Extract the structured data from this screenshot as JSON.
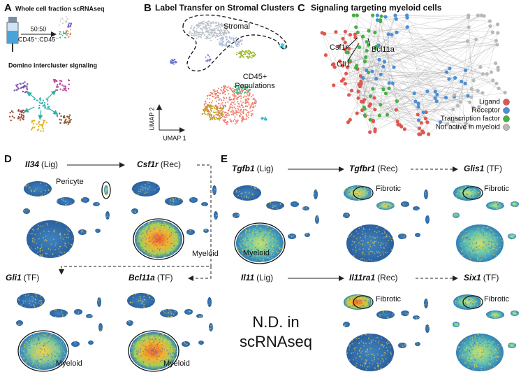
{
  "panel_a": {
    "label": "A",
    "title": "Whole cell fraction scRNAseq",
    "ratio": "50:50",
    "ratio_label": "CD45⁺:CD45⁻",
    "subtitle": "Domino intercluster signaling"
  },
  "panel_b": {
    "label": "B",
    "title": "Label Transfer on Stromal Clusters",
    "stromal": "Stromal",
    "populations": [
      "CD45+",
      "Populations"
    ],
    "umap_y": "UMAP 2",
    "umap_x": "UMAP 1"
  },
  "panel_c": {
    "label": "C",
    "title": "Signaling targeting myeloid cells",
    "genes": [
      "Csf1r",
      "Bcl11a",
      "Gli1"
    ],
    "legend": [
      {
        "name": "Ligand",
        "color": "#e0574f"
      },
      {
        "name": "Receptor",
        "color": "#4a8fd8"
      },
      {
        "name": "Transcription factor",
        "color": "#46b044"
      },
      {
        "name": "Not active in myeloid",
        "color": "#b8b8b8"
      }
    ]
  },
  "panel_d": {
    "label": "D",
    "plots": [
      {
        "gene": "Il34",
        "role": "(Lig)",
        "annotation": "Pericyte"
      },
      {
        "gene": "Csf1r",
        "role": "(Rec)",
        "annotation": "Myeloid"
      },
      {
        "gene": "Gli1",
        "role": "(TF)",
        "annotation": "Myeloid"
      },
      {
        "gene": "Bcl11a",
        "role": "(TF)",
        "annotation": "Myeloid"
      }
    ]
  },
  "panel_e": {
    "label": "E",
    "plots": [
      {
        "gene": "Tgfb1",
        "role": "(Lig)",
        "annotation": "Myeloid"
      },
      {
        "gene": "Tgfbr1",
        "role": "(Rec)",
        "annotation": "Fibrotic"
      },
      {
        "gene": "Glis1",
        "role": "(TF)",
        "annotation": "Fibrotic"
      },
      {
        "gene": "Il11",
        "role": "(Lig)"
      },
      {
        "gene": "Il11ra1",
        "role": "(Rec)",
        "annotation": "Fibrotic"
      },
      {
        "gene": "Six1",
        "role": "(TF)",
        "annotation": "Fibrotic"
      }
    ],
    "not_detected": [
      "N.D. in",
      "scRNAseq"
    ]
  }
}
